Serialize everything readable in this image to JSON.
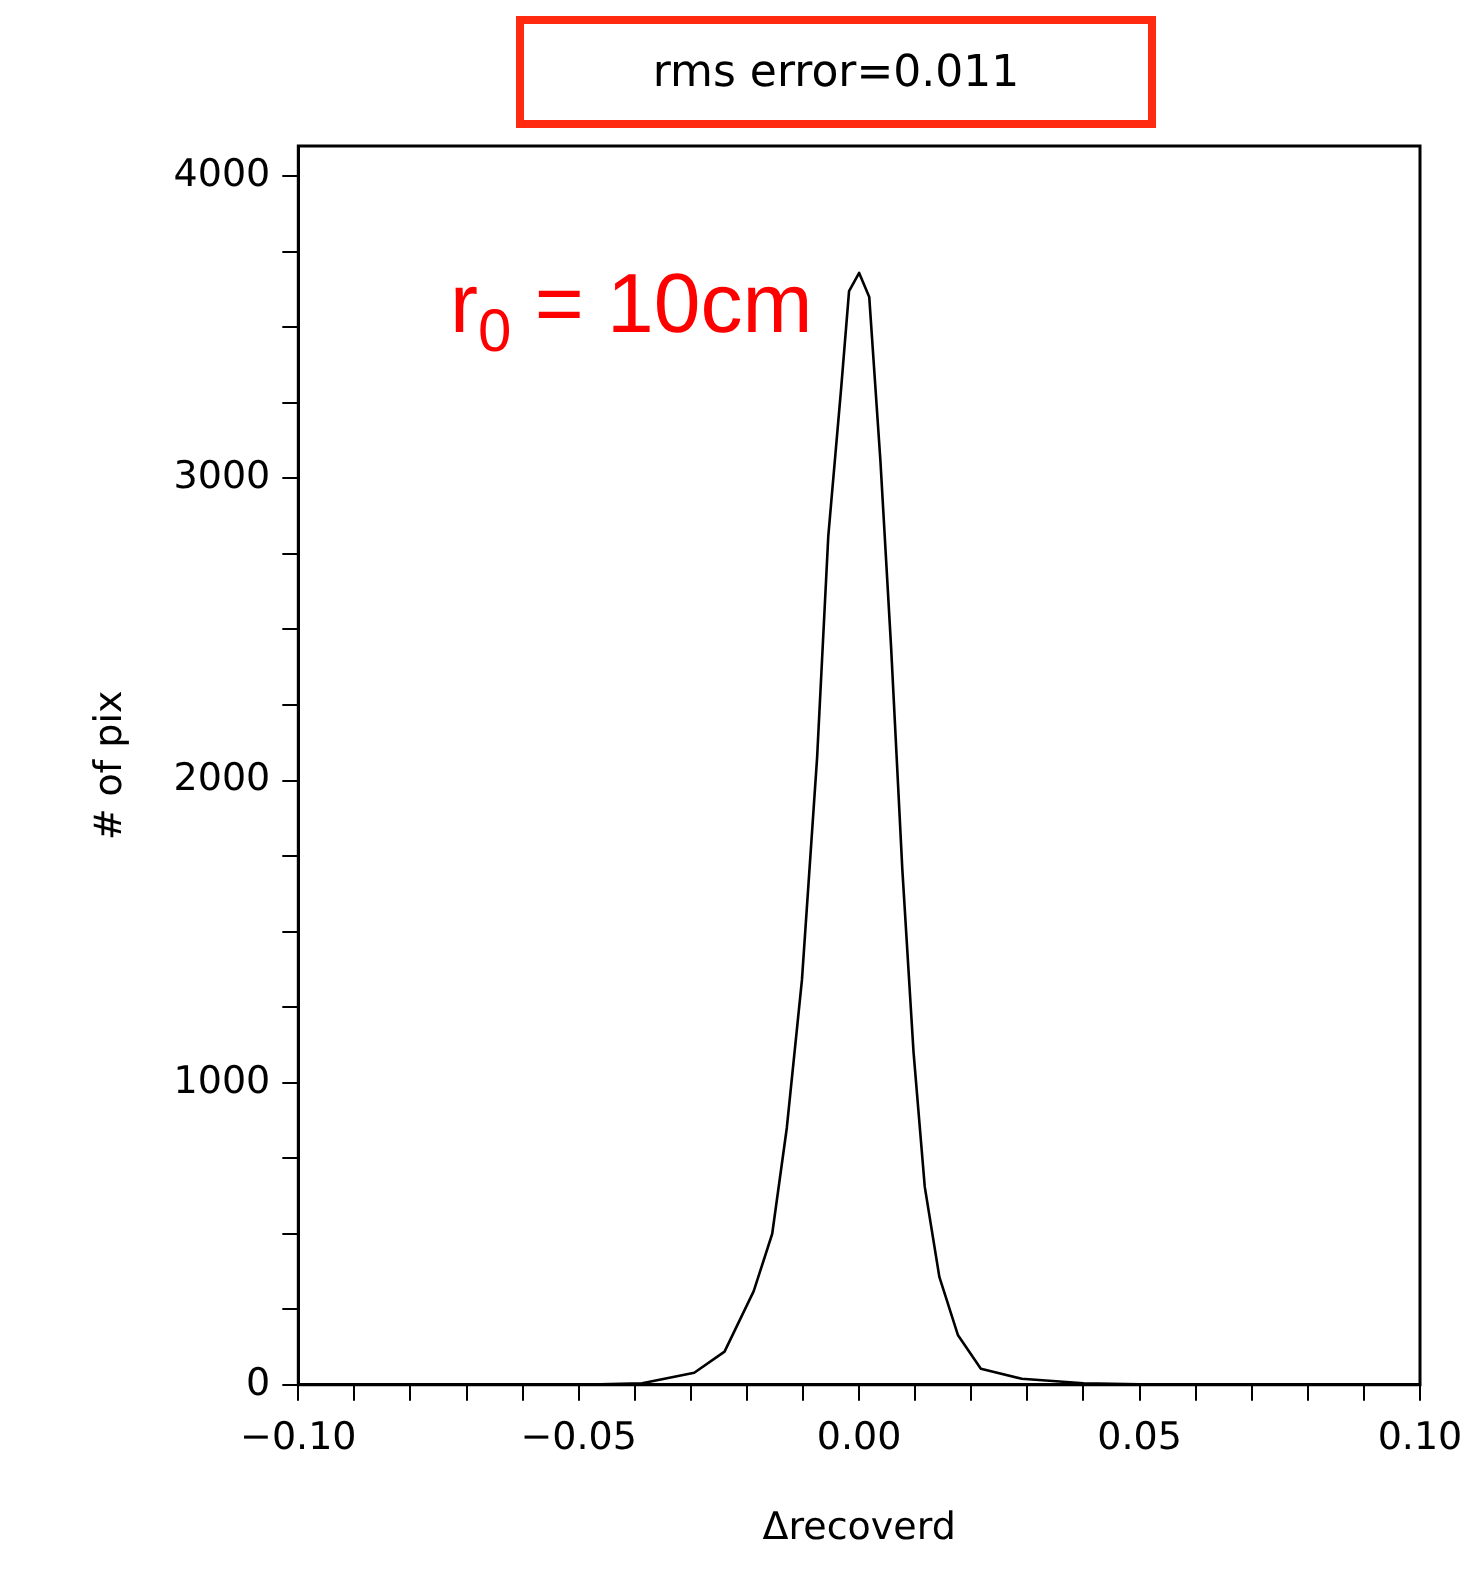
{
  "chart_data": {
    "type": "line",
    "xlabel": "Δrecoverd",
    "ylabel": "# of pix",
    "annotations": [
      "rms error=0.011",
      "r$_{0}$ = 10cm"
    ],
    "series": [
      {
        "color": "#000000",
        "x": [
          -0.065,
          -0.05,
          -0.0387,
          -0.0294,
          -0.024,
          -0.0188,
          -0.0155,
          -0.0129,
          -0.0102,
          -0.0075,
          -0.0055,
          -0.0032,
          -0.0018,
          0,
          0.0018,
          0.0038,
          0.0057,
          0.0077,
          0.0097,
          0.0117,
          0.0143,
          0.0176,
          0.0217,
          0.029,
          0.04,
          0.055
        ],
        "values": [
          0,
          0,
          5,
          40,
          110,
          310,
          500,
          850,
          1340,
          2075,
          2810,
          3300,
          3620,
          3680,
          3600,
          3055,
          2440,
          1705,
          1100,
          655,
          357,
          165,
          53,
          20,
          5,
          0
        ]
      }
    ],
    "xlim": [
      -0.1,
      0.1
    ],
    "xticks": [
      {
        "value": -0.1,
        "label": "−0.10"
      },
      {
        "value": -0.09,
        "label": null
      },
      {
        "value": -0.08,
        "label": null
      },
      {
        "value": -0.07,
        "label": null
      },
      {
        "value": -0.06,
        "label": null
      },
      {
        "value": -0.05,
        "label": "−0.05"
      },
      {
        "value": -0.04,
        "label": null
      },
      {
        "value": -0.03,
        "label": null
      },
      {
        "value": -0.02,
        "label": null
      },
      {
        "value": -0.01,
        "label": null
      },
      {
        "value": 0,
        "label": "0.00"
      },
      {
        "value": 0.01,
        "label": null
      },
      {
        "value": 0.02,
        "label": null
      },
      {
        "value": 0.03,
        "label": null
      },
      {
        "value": 0.04,
        "label": null
      },
      {
        "value": 0.05,
        "label": "0.05"
      },
      {
        "value": 0.06,
        "label": null
      },
      {
        "value": 0.07,
        "label": null
      },
      {
        "value": 0.08,
        "label": null
      },
      {
        "value": 0.09,
        "label": null
      },
      {
        "value": 0.1,
        "label": "0.10"
      }
    ],
    "ylim": [
      0,
      4100
    ],
    "yticks": [
      0,
      {
        "value": 250,
        "label": null
      },
      {
        "value": 500,
        "label": null
      },
      {
        "value": 750,
        "label": null
      },
      1000,
      {
        "value": 1250,
        "label": null
      },
      {
        "value": 1500,
        "label": null
      },
      {
        "value": 1750,
        "label": null
      },
      2000,
      {
        "value": 2250,
        "label": null
      },
      {
        "value": 2500,
        "label": null
      },
      {
        "value": 2750,
        "label": null
      },
      3000,
      {
        "value": 3250,
        "label": null
      },
      {
        "value": 3500,
        "label": null
      },
      {
        "value": 3750,
        "label": null
      },
      4000
    ],
    "grid": false,
    "legend": false,
    "marker": "none",
    "line_style": "solid"
  }
}
